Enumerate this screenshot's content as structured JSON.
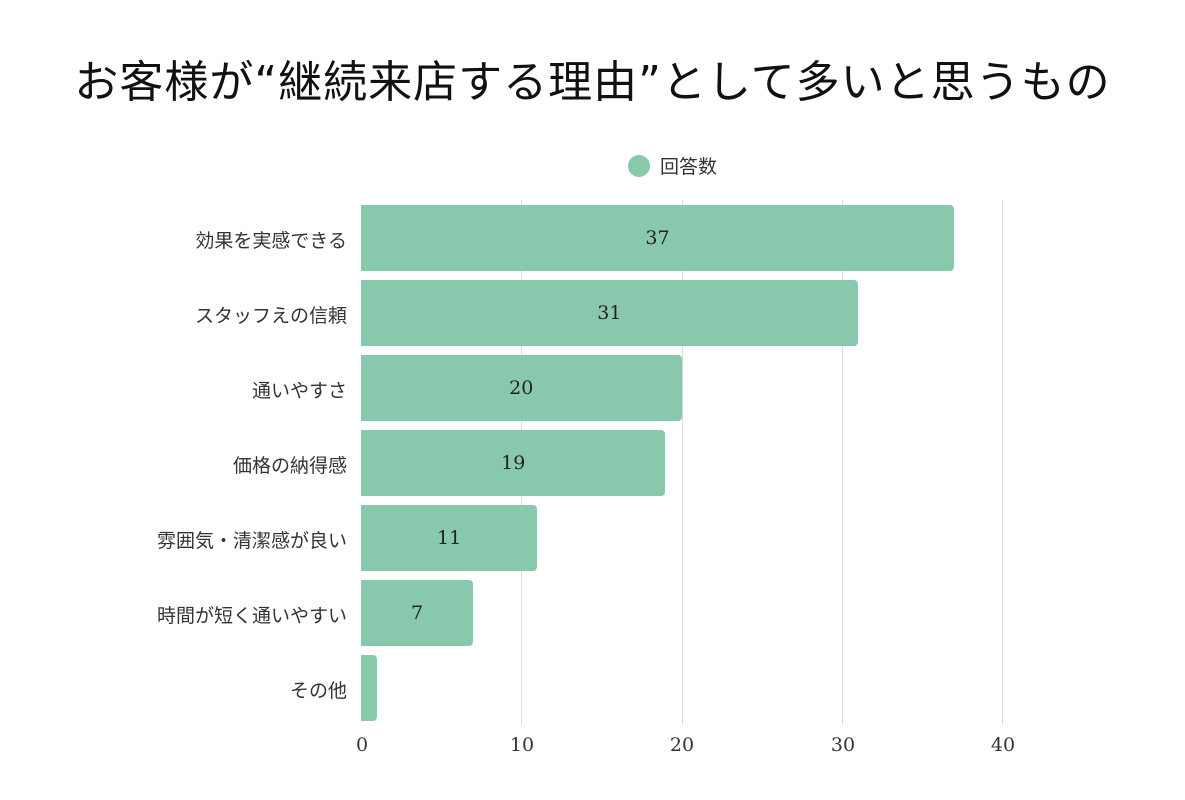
{
  "title": "お客様が“継続来店する理由”として多いと思うもの",
  "legend": {
    "label": "回答数",
    "color": "#88c9ad"
  },
  "colors": {
    "bar": "#88c9ad",
    "grid": "#dcdcdc",
    "text": "#222222"
  },
  "axis": {
    "ticks": [
      "0",
      "10",
      "20",
      "30",
      "40"
    ]
  },
  "bars": [
    {
      "label": "効果を実感できる",
      "value": 37,
      "value_text": "37"
    },
    {
      "label": "スタッフえの信頼",
      "value": 31,
      "value_text": "31"
    },
    {
      "label": "通いやすさ",
      "value": 20,
      "value_text": "20"
    },
    {
      "label": "価格の納得感",
      "value": 19,
      "value_text": "19"
    },
    {
      "label": "雰囲気・清潔感が良い",
      "value": 11,
      "value_text": "11"
    },
    {
      "label": "時間が短く通いやすい",
      "value": 7,
      "value_text": "7"
    },
    {
      "label": "その他",
      "value": 1,
      "value_text": ""
    }
  ],
  "chart_data": {
    "type": "bar",
    "orientation": "horizontal",
    "title": "お客様が“継続来店する理由”として多いと思うもの",
    "categories": [
      "効果を実感できる",
      "スタッフえの信頼",
      "通いやすさ",
      "価格の納得感",
      "雰囲気・清潔感が良い",
      "時間が短く通いやすい",
      "その他"
    ],
    "series": [
      {
        "name": "回答数",
        "values": [
          37,
          31,
          20,
          19,
          11,
          7,
          1
        ]
      }
    ],
    "xlabel": "",
    "ylabel": "",
    "xlim": [
      0,
      40
    ],
    "xticks": [
      0,
      10,
      20,
      30,
      40
    ],
    "grid": true,
    "legend_position": "top",
    "data_labels": true
  }
}
